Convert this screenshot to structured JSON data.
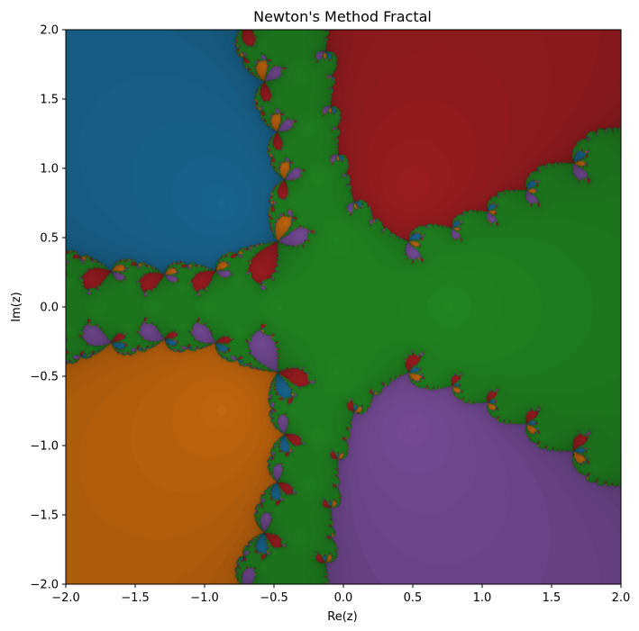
{
  "chart_data": {
    "type": "heatmap",
    "title": "Newton's Method Fractal",
    "xlabel": "Re(z)",
    "ylabel": "Im(z)",
    "xlim": [
      -2.0,
      2.0
    ],
    "ylim": [
      -2.0,
      2.0
    ],
    "xticks": [
      -2.0,
      -1.5,
      -1.0,
      -0.5,
      0.0,
      0.5,
      1.0,
      1.5,
      2.0
    ],
    "yticks": [
      -2.0,
      -1.5,
      -1.0,
      -0.5,
      0.0,
      0.5,
      1.0,
      1.5,
      2.0
    ],
    "xtick_labels": [
      "−2.0",
      "−1.5",
      "−1.0",
      "−0.5",
      "0.0",
      "0.5",
      "1.0",
      "1.5",
      "2.0"
    ],
    "ytick_labels": [
      "−2.0",
      "−1.5",
      "−1.0",
      "−0.5",
      "0.0",
      "0.5",
      "1.0",
      "1.5",
      "2.0"
    ],
    "grid": false,
    "roots": [
      {
        "re": 0.7245,
        "im": 0.0,
        "color": "#228b22"
      },
      {
        "re": 0.2481,
        "im": 0.6586,
        "color": "#a31e22"
      },
      {
        "re": 0.2481,
        "im": -0.6586,
        "color": "#7a4e9c"
      },
      {
        "re": -0.7722,
        "im": 0.6761,
        "color": "#1a6a97"
      },
      {
        "re": -0.7722,
        "im": -0.6761,
        "color": "#cb6a0e"
      }
    ]
  }
}
